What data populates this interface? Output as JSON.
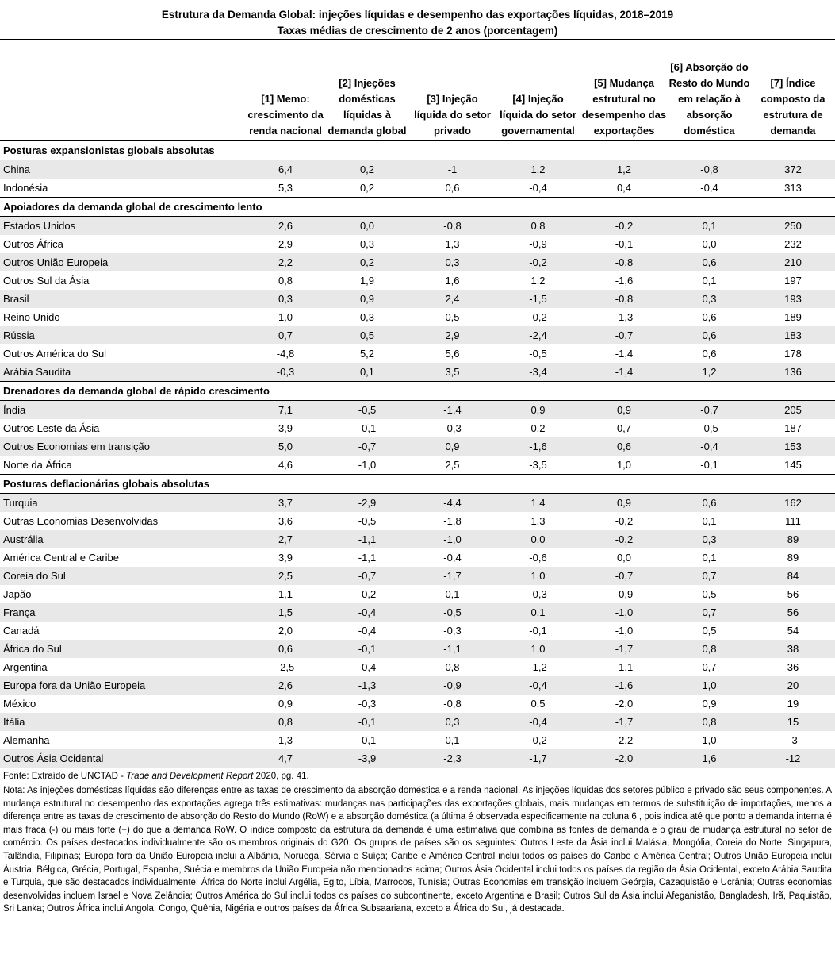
{
  "title_line1": "Estrutura da Demanda Global: injeções líquidas e desempenho das exportações líquidas, 2018–2019",
  "title_line2": "Taxas médias de crescimento de 2 anos (porcentagem)",
  "columns": [
    "",
    "[1] Memo: crescimento da renda nacional",
    "[2] Injeções domésticas líquidas à demanda global",
    "[3] Injeção líquida do setor privado",
    "[4] Injeção líquida do setor governamental",
    "[5] Mudança estrutural no desempenho das exportações",
    "[6] Absorção do Resto do Mundo em relação à absorção doméstica",
    "[7] Índice composto da estrutura de demanda"
  ],
  "groups": [
    {
      "name": "Posturas expansionistas globais absolutas",
      "rows": [
        [
          "China",
          "6,4",
          "0,2",
          "-1",
          "1,2",
          "1,2",
          "-0,8",
          "372"
        ],
        [
          "Indonésia",
          "5,3",
          "0,2",
          "0,6",
          "-0,4",
          "0,4",
          "-0,4",
          "313"
        ]
      ]
    },
    {
      "name": "Apoiadores da demanda global de crescimento lento",
      "rows": [
        [
          "Estados Unidos",
          "2,6",
          "0,0",
          "-0,8",
          "0,8",
          "-0,2",
          "0,1",
          "250"
        ],
        [
          "Outros África",
          "2,9",
          "0,3",
          "1,3",
          "-0,9",
          "-0,1",
          "0,0",
          "232"
        ],
        [
          "Outros União Europeia",
          "2,2",
          "0,2",
          "0,3",
          "-0,2",
          "-0,8",
          "0,6",
          "210"
        ],
        [
          "Outros Sul da Ásia",
          "0,8",
          "1,9",
          "1,6",
          "1,2",
          "-1,6",
          "0,1",
          "197"
        ],
        [
          "Brasil",
          "0,3",
          "0,9",
          "2,4",
          "-1,5",
          "-0,8",
          "0,3",
          "193"
        ],
        [
          "Reino Unido",
          "1,0",
          "0,3",
          "0,5",
          "-0,2",
          "-1,3",
          "0,6",
          "189"
        ],
        [
          "Rússia",
          "0,7",
          "0,5",
          "2,9",
          "-2,4",
          "-0,7",
          "0,6",
          "183"
        ],
        [
          "Outros América do Sul",
          "-4,8",
          "5,2",
          "5,6",
          "-0,5",
          "-1,4",
          "0,6",
          "178"
        ],
        [
          "Arábia Saudita",
          "-0,3",
          "0,1",
          "3,5",
          "-3,4",
          "-1,4",
          "1,2",
          "136"
        ]
      ]
    },
    {
      "name": "Drenadores da demanda global de rápido crescimento",
      "rows": [
        [
          "Índia",
          "7,1",
          "-0,5",
          "-1,4",
          "0,9",
          "0,9",
          "-0,7",
          "205"
        ],
        [
          "Outros Leste da Ásia",
          "3,9",
          "-0,1",
          "-0,3",
          "0,2",
          "0,7",
          "-0,5",
          "187"
        ],
        [
          "Outros Economias em transição",
          "5,0",
          "-0,7",
          "0,9",
          "-1,6",
          "0,6",
          "-0,4",
          "153"
        ],
        [
          "Norte da África",
          "4,6",
          "-1,0",
          "2,5",
          "-3,5",
          "1,0",
          "-0,1",
          "145"
        ]
      ]
    },
    {
      "name": "Posturas deflacionárias globais absolutas",
      "rows": [
        [
          "Turquia",
          "3,7",
          "-2,9",
          "-4,4",
          "1,4",
          "0,9",
          "0,6",
          "162"
        ],
        [
          "Outras Economias Desenvolvidas",
          "3,6",
          "-0,5",
          "-1,8",
          "1,3",
          "-0,2",
          "0,1",
          "111"
        ],
        [
          "Austrália",
          "2,7",
          "-1,1",
          "-1,0",
          "0,0",
          "-0,2",
          "0,3",
          "89"
        ],
        [
          "América Central e Caribe",
          "3,9",
          "-1,1",
          "-0,4",
          "-0,6",
          "0,0",
          "0,1",
          "89"
        ],
        [
          "Coreia do Sul",
          "2,5",
          "-0,7",
          "-1,7",
          "1,0",
          "-0,7",
          "0,7",
          "84"
        ],
        [
          "Japão",
          "1,1",
          "-0,2",
          "0,1",
          "-0,3",
          "-0,9",
          "0,5",
          "56"
        ],
        [
          "França",
          "1,5",
          "-0,4",
          "-0,5",
          "0,1",
          "-1,0",
          "0,7",
          "56"
        ],
        [
          "Canadá",
          "2,0",
          "-0,4",
          "-0,3",
          "-0,1",
          "-1,0",
          "0,5",
          "54"
        ],
        [
          "África do Sul",
          "0,6",
          "-0,1",
          "-1,1",
          "1,0",
          "-1,7",
          "0,8",
          "38"
        ],
        [
          "Argentina",
          "-2,5",
          "-0,4",
          "0,8",
          "-1,2",
          "-1,1",
          "0,7",
          "36"
        ],
        [
          "Europa fora da União Europeia",
          "2,6",
          "-1,3",
          "-0,9",
          "-0,4",
          "-1,6",
          "1,0",
          "20"
        ],
        [
          "México",
          "0,9",
          "-0,3",
          "-0,8",
          "0,5",
          "-2,0",
          "0,9",
          "19"
        ],
        [
          "Itália",
          "0,8",
          "-0,1",
          "0,3",
          "-0,4",
          "-1,7",
          "0,8",
          "15"
        ],
        [
          "Alemanha",
          "1,3",
          "-0,1",
          "0,1",
          "-0,2",
          "-2,2",
          "1,0",
          "-3"
        ],
        [
          "Outros Ásia Ocidental",
          "4,7",
          "-3,9",
          "-2,3",
          "-1,7",
          "-2,0",
          "1,6",
          "-12"
        ]
      ]
    }
  ],
  "source_prefix": "Fonte: Extraído de UNCTAD - ",
  "source_italic": "Trade and Development Report",
  "source_suffix": " 2020, pg. 41.",
  "note": "Nota: As injeções domésticas líquidas são diferenças entre as taxas de crescimento da absorção doméstica e a renda nacional. As injeções líquidas dos setores público e privado são seus componentes. A mudança estrutural no desempenho das exportações agrega três estimativas: mudanças nas participações das exportações globais, mais mudanças em termos de substituição de importações, menos a diferença entre as taxas de crescimento de absorção do Resto do Mundo (RoW) e a absorção doméstica (a última é observada especificamente na coluna 6 , pois indica até que ponto a demanda interna é mais fraca (-) ou mais forte (+) do que a demanda RoW. O índice composto da estrutura da demanda é uma estimativa que combina as fontes de demanda e o grau de mudança estrutural no setor de comércio. Os países destacados individualmente são os membros originais do G20. Os grupos de países são os seguintes: Outros Leste da Ásia inclui Malásia, Mongólia, Coreia do Norte, Singapura, Tailândia, Filipinas; Europa fora da União Europeia inclui a Albânia, Noruega, Sérvia e Suíça; Caribe e América Central inclui todos os países do Caribe e América Central; Outros União Europeia inclui Áustria, Bélgica, Grécia, Portugal, Espanha, Suécia e membros da União Europeia não mencionados acima; Outros Ásia Ocidental inclui todos os países da região da Ásia Ocidental, exceto Arábia Saudita e Turquia, que são destacados individualmente; África do Norte inclui Argélia, Egito, Líbia, Marrocos, Tunísia; Outras Economias em transição incluem Geórgia, Cazaquistão e Ucrânia; Outras economias desenvolvidas incluem Israel e Nova Zelândia; Outros América do Sul inclui todos os países do subcontinente, exceto Argentina e Brasil; Outros Sul da Ásia inclui Afeganistão, Bangladesh, Irã, Paquistão, Sri Lanka; Outros África inclui Angola, Congo, Quênia, Nigéria e outros países da África Subsaariana, exceto a África do Sul, já destacada."
}
